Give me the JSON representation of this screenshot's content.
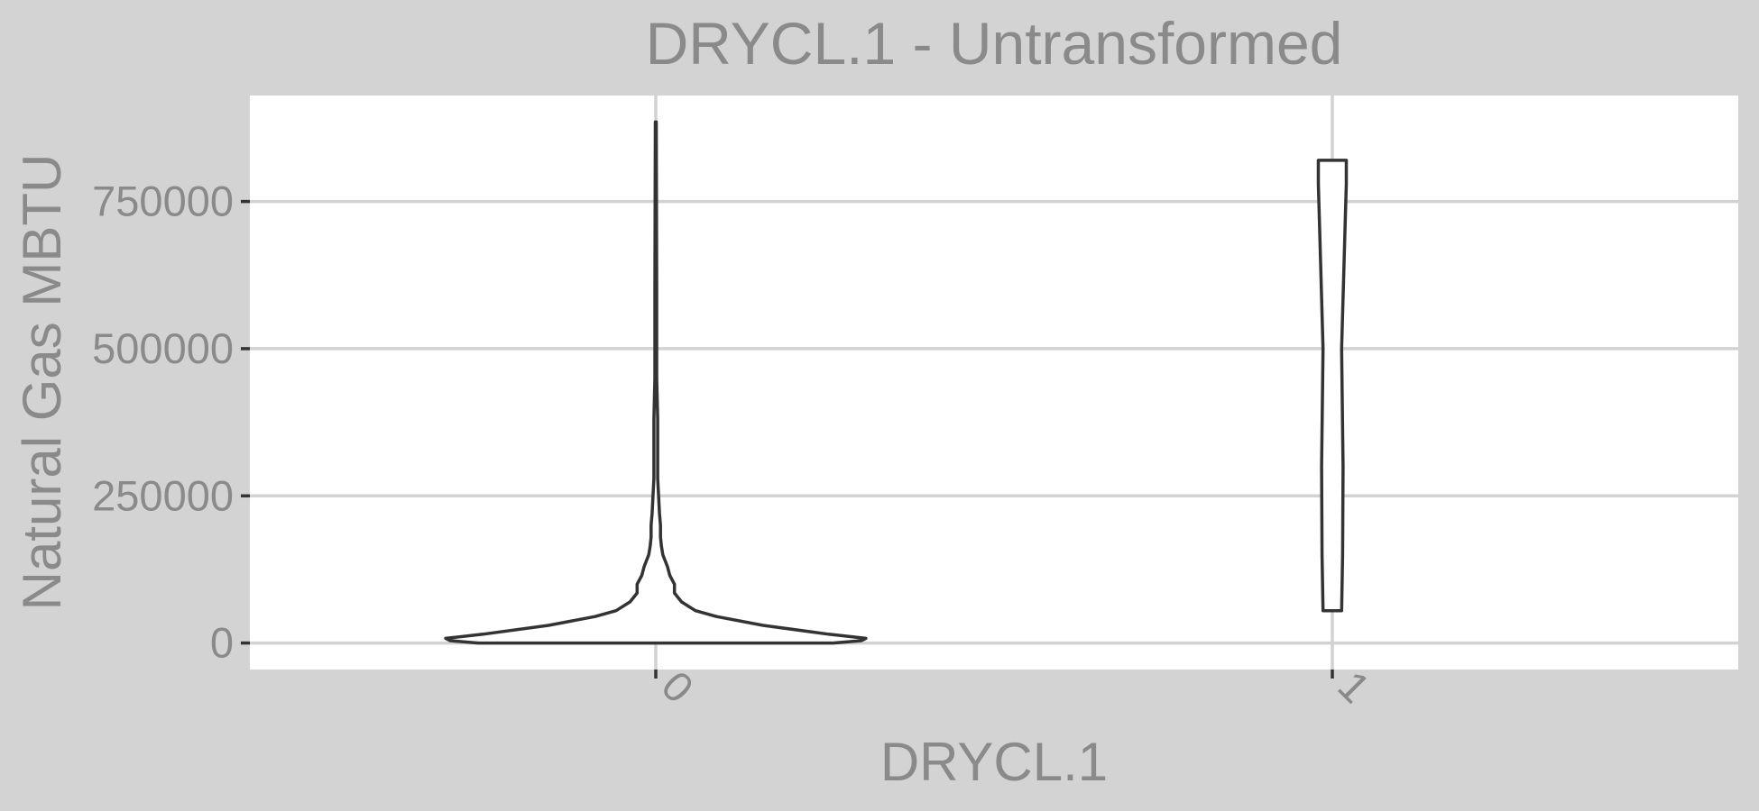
{
  "chart_data": {
    "type": "violin",
    "title": "DRYCL.1 - Untransformed",
    "xlabel": "DRYCL.1",
    "ylabel": "Natural Gas MBTU",
    "categories": [
      "0",
      "1"
    ],
    "y_ticks": [
      0,
      250000,
      500000,
      750000
    ],
    "y_tick_labels": [
      "0",
      "250000",
      "500000",
      "750000"
    ],
    "ylim": [
      -45000,
      930000
    ],
    "x_tick_label_rotation_deg": 45,
    "grid": true,
    "colors": {
      "panel_background": "#ffffff",
      "plot_background": "#d3d3d3",
      "gridline": "#d2d2d2",
      "violin_outline": "#333333",
      "violin_fill": "#ffffff",
      "text": "#8a8a8a"
    },
    "violins": [
      {
        "category": "0",
        "y_min": 0,
        "y_max": 885000,
        "profile": [
          {
            "y": 0,
            "w": 0.38
          },
          {
            "y": 4000,
            "w": 0.44
          },
          {
            "y": 8000,
            "w": 0.45
          },
          {
            "y": 15000,
            "w": 0.37
          },
          {
            "y": 30000,
            "w": 0.23
          },
          {
            "y": 45000,
            "w": 0.13
          },
          {
            "y": 55000,
            "w": 0.085
          },
          {
            "y": 70000,
            "w": 0.055
          },
          {
            "y": 85000,
            "w": 0.04
          },
          {
            "y": 100000,
            "w": 0.04
          },
          {
            "y": 115000,
            "w": 0.03
          },
          {
            "y": 130000,
            "w": 0.025
          },
          {
            "y": 150000,
            "w": 0.015
          },
          {
            "y": 165000,
            "w": 0.012
          },
          {
            "y": 180000,
            "w": 0.01
          },
          {
            "y": 200000,
            "w": 0.01
          },
          {
            "y": 220000,
            "w": 0.008
          },
          {
            "y": 250000,
            "w": 0.006
          },
          {
            "y": 280000,
            "w": 0.004
          },
          {
            "y": 320000,
            "w": 0.004
          },
          {
            "y": 380000,
            "w": 0.004
          },
          {
            "y": 450000,
            "w": 0.002
          },
          {
            "y": 600000,
            "w": 0.002
          },
          {
            "y": 885000,
            "w": 0.001
          }
        ]
      },
      {
        "category": "1",
        "y_min": 55000,
        "y_max": 820000,
        "profile": [
          {
            "y": 55000,
            "w": 0.02
          },
          {
            "y": 150000,
            "w": 0.022
          },
          {
            "y": 300000,
            "w": 0.023
          },
          {
            "y": 500000,
            "w": 0.02
          },
          {
            "y": 700000,
            "w": 0.027
          },
          {
            "y": 780000,
            "w": 0.03
          },
          {
            "y": 820000,
            "w": 0.03
          }
        ]
      }
    ]
  }
}
